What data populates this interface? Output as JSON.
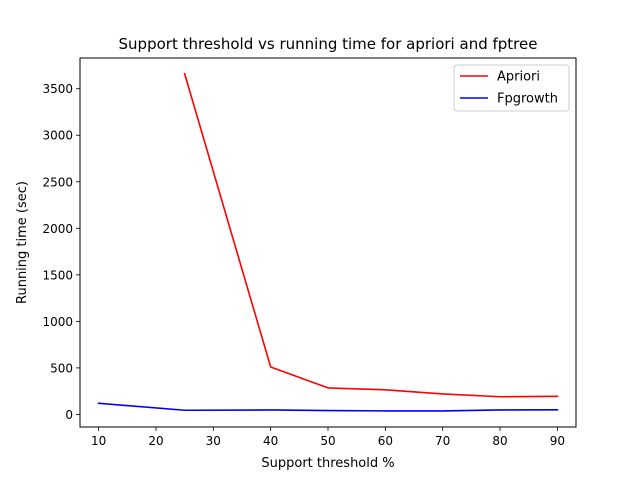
{
  "chart_data": {
    "type": "line",
    "title": "Support threshold vs running time for apriori and fptree",
    "xlabel": "Support threshold %",
    "ylabel": "Running time (sec)",
    "xlim": [
      6.75,
      93.25
    ],
    "ylim": [
      -135,
      3830
    ],
    "xticks": [
      10,
      20,
      30,
      40,
      50,
      60,
      70,
      80,
      90
    ],
    "yticks": [
      0,
      500,
      1000,
      1500,
      2000,
      2500,
      3000,
      3500
    ],
    "grid": false,
    "legend_position": "top-right",
    "series": [
      {
        "name": "Apriori",
        "color": "#ff0000",
        "x": [
          25,
          40,
          50,
          60,
          70,
          80,
          90
        ],
        "y": [
          3660,
          510,
          285,
          265,
          220,
          190,
          195
        ]
      },
      {
        "name": "Fpgrowth",
        "color": "#0000ff",
        "x": [
          10,
          25,
          40,
          50,
          60,
          70,
          80,
          90
        ],
        "y": [
          120,
          45,
          48,
          42,
          38,
          38,
          48,
          50
        ]
      }
    ]
  }
}
